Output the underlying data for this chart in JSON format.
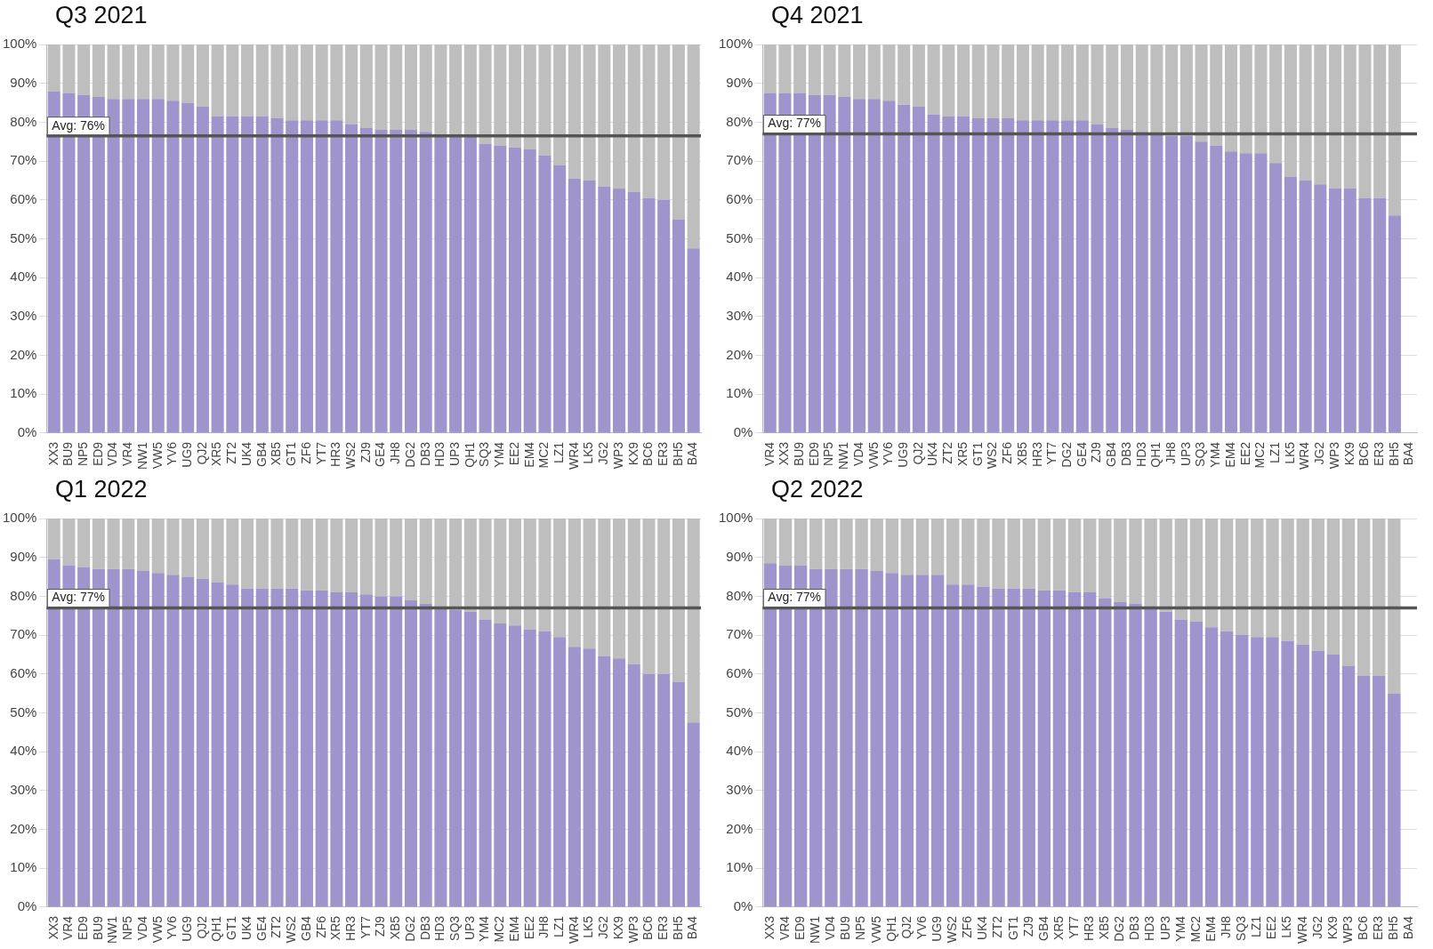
{
  "chart_data": [
    {
      "type": "bar",
      "title": "Q3 2021",
      "stacked": true,
      "grid": "y",
      "ylim": [
        0,
        100
      ],
      "yticks": [
        {
          "value": 0,
          "label": "0%"
        },
        {
          "value": 10,
          "label": "10%"
        },
        {
          "value": 20,
          "label": "20%"
        },
        {
          "value": 30,
          "label": "30%"
        },
        {
          "value": 40,
          "label": "40%"
        },
        {
          "value": 50,
          "label": "50%"
        },
        {
          "value": 60,
          "label": "60%"
        },
        {
          "value": 70,
          "label": "70%"
        },
        {
          "value": 80,
          "label": "80%"
        },
        {
          "value": 90,
          "label": "90%"
        },
        {
          "value": 100,
          "label": "100%"
        }
      ],
      "categories": [
        "XX3",
        "BU9",
        "NP5",
        "ED9",
        "VD4",
        "VR4",
        "NW1",
        "VW5",
        "YV6",
        "UG9",
        "QJ2",
        "XR5",
        "ZT2",
        "UK4",
        "GB4",
        "XB5",
        "GT1",
        "ZF6",
        "YT7",
        "HR3",
        "WS2",
        "ZJ9",
        "GE4",
        "JH8",
        "DG2",
        "DB3",
        "HD3",
        "UP3",
        "QH1",
        "SQ3",
        "YM4",
        "EE2",
        "EM4",
        "MC2",
        "LZ1",
        "WR4",
        "LK5",
        "JG2",
        "WP3",
        "KX9",
        "BC6",
        "ER3",
        "BH5",
        "BA4"
      ],
      "series": [
        {
          "color": "#9f94cb",
          "values": [
            88,
            87.5,
            87,
            86.5,
            86,
            86,
            86,
            86,
            85.5,
            85,
            84,
            81.5,
            81.5,
            81.5,
            81.5,
            81,
            80.5,
            80.5,
            80.5,
            80.5,
            79.5,
            78.5,
            78,
            78,
            78,
            77.5,
            76.5,
            76.5,
            76.5,
            74.5,
            74,
            73.5,
            73,
            71.5,
            69,
            65.5,
            65,
            63.5,
            63,
            62,
            60.5,
            60,
            55,
            47.5
          ]
        },
        {
          "color": "#bebebe",
          "values": [
            12,
            12.5,
            13,
            13.5,
            14,
            14,
            14,
            14,
            14.5,
            15,
            16,
            18.5,
            18.5,
            18.5,
            18.5,
            19,
            19.5,
            19.5,
            19.5,
            19.5,
            20.5,
            21.5,
            22,
            22,
            22,
            22.5,
            23.5,
            23.5,
            23.5,
            25.5,
            26,
            26.5,
            27,
            28.5,
            31,
            34.5,
            35,
            36.5,
            37,
            38,
            39.5,
            40,
            45,
            52.5
          ]
        }
      ],
      "ref_lines": [
        {
          "axis": "y",
          "value": 76.5,
          "label": "Avg: 76%",
          "color": "#555555"
        }
      ]
    },
    {
      "type": "bar",
      "title": "Q4 2021",
      "stacked": true,
      "grid": "y",
      "ylim": [
        0,
        100
      ],
      "yticks": [
        {
          "value": 0,
          "label": "0%"
        },
        {
          "value": 10,
          "label": "10%"
        },
        {
          "value": 20,
          "label": "20%"
        },
        {
          "value": 30,
          "label": "30%"
        },
        {
          "value": 40,
          "label": "40%"
        },
        {
          "value": 50,
          "label": "50%"
        },
        {
          "value": 60,
          "label": "60%"
        },
        {
          "value": 70,
          "label": "70%"
        },
        {
          "value": 80,
          "label": "80%"
        },
        {
          "value": 90,
          "label": "90%"
        },
        {
          "value": 100,
          "label": "100%"
        }
      ],
      "categories": [
        "VR4",
        "XX3",
        "BU9",
        "ED9",
        "NP5",
        "NW1",
        "VD4",
        "VW5",
        "YV6",
        "UG9",
        "QJ2",
        "UK4",
        "ZT2",
        "XR5",
        "GT1",
        "WS2",
        "ZF6",
        "XB5",
        "HR3",
        "YT7",
        "DG2",
        "GE4",
        "ZJ9",
        "GB4",
        "DB3",
        "HD3",
        "QH1",
        "JH8",
        "UP3",
        "SQ3",
        "YM4",
        "EM4",
        "EE2",
        "MC2",
        "LZ1",
        "LK5",
        "WR4",
        "JG2",
        "WP3",
        "KX9",
        "BC6",
        "ER3",
        "BH5",
        "BA4"
      ],
      "series": [
        {
          "color": "#9f94cb",
          "values": [
            87.5,
            87.5,
            87.5,
            87,
            87,
            86.5,
            86,
            86,
            85.5,
            84.5,
            84,
            82,
            81.5,
            81.5,
            81,
            81,
            81,
            80.5,
            80.5,
            80.5,
            80.5,
            80.5,
            79.5,
            78.5,
            78,
            77.5,
            77,
            76.5,
            76.5,
            75,
            74,
            72.5,
            72,
            72,
            69.5,
            66,
            65,
            64,
            63,
            63,
            60.5,
            60.5,
            56,
            null
          ]
        },
        {
          "color": "#bebebe",
          "values": [
            12.5,
            12.5,
            12.5,
            13,
            13,
            13.5,
            14,
            14,
            14.5,
            15.5,
            16,
            18,
            18.5,
            18.5,
            19,
            19,
            19,
            19.5,
            19.5,
            19.5,
            19.5,
            19.5,
            20.5,
            21.5,
            22,
            22.5,
            23,
            23.5,
            23.5,
            25,
            26,
            27.5,
            28,
            28,
            30.5,
            34,
            35,
            36,
            37,
            37,
            39.5,
            39.5,
            44,
            null
          ]
        }
      ],
      "ref_lines": [
        {
          "axis": "y",
          "value": 77,
          "label": "Avg: 77%",
          "color": "#555555"
        }
      ]
    },
    {
      "type": "bar",
      "title": "Q1 2022",
      "stacked": true,
      "grid": "y",
      "ylim": [
        0,
        100
      ],
      "yticks": [
        {
          "value": 0,
          "label": "0%"
        },
        {
          "value": 10,
          "label": "10%"
        },
        {
          "value": 20,
          "label": "20%"
        },
        {
          "value": 30,
          "label": "30%"
        },
        {
          "value": 40,
          "label": "40%"
        },
        {
          "value": 50,
          "label": "50%"
        },
        {
          "value": 60,
          "label": "60%"
        },
        {
          "value": 70,
          "label": "70%"
        },
        {
          "value": 80,
          "label": "80%"
        },
        {
          "value": 90,
          "label": "90%"
        },
        {
          "value": 100,
          "label": "100%"
        }
      ],
      "categories": [
        "XX3",
        "VR4",
        "ED9",
        "BU9",
        "NW1",
        "NP5",
        "VD4",
        "VW5",
        "YV6",
        "UG9",
        "QJ2",
        "QH1",
        "GT1",
        "UK4",
        "GE4",
        "ZT2",
        "WS2",
        "GB4",
        "ZF6",
        "XR5",
        "HR3",
        "YT7",
        "ZJ9",
        "XB5",
        "DG2",
        "DB3",
        "HD3",
        "SQ3",
        "UP3",
        "YM4",
        "MC2",
        "EM4",
        "EE2",
        "JH8",
        "LZ1",
        "WR4",
        "LK5",
        "JG2",
        "KX9",
        "WP3",
        "BC6",
        "ER3",
        "BH5",
        "BA4"
      ],
      "series": [
        {
          "color": "#9f94cb",
          "values": [
            89.5,
            88,
            87.5,
            87,
            87,
            87,
            86.5,
            86,
            85.5,
            85,
            84.5,
            83.5,
            83,
            82,
            82,
            82,
            82,
            81.5,
            81.5,
            81,
            81,
            80.5,
            80,
            80,
            79,
            78,
            77,
            76.5,
            76,
            74,
            73,
            72.5,
            71.5,
            71,
            69.5,
            67,
            66.5,
            64.5,
            64,
            62.5,
            60,
            60,
            58,
            47.5
          ]
        },
        {
          "color": "#bebebe",
          "values": [
            10.5,
            12,
            12.5,
            13,
            13,
            13,
            13.5,
            14,
            14.5,
            15,
            15.5,
            16.5,
            17,
            18,
            18,
            18,
            18,
            18.5,
            18.5,
            19,
            19,
            19.5,
            20,
            20,
            21,
            22,
            23,
            23.5,
            24,
            26,
            27,
            27.5,
            28.5,
            29,
            30.5,
            33,
            33.5,
            35.5,
            36,
            37.5,
            40,
            40,
            42,
            52.5
          ]
        }
      ],
      "ref_lines": [
        {
          "axis": "y",
          "value": 77,
          "label": "Avg: 77%",
          "color": "#555555"
        }
      ]
    },
    {
      "type": "bar",
      "title": "Q2 2022",
      "stacked": true,
      "grid": "y",
      "ylim": [
        0,
        100
      ],
      "yticks": [
        {
          "value": 0,
          "label": "0%"
        },
        {
          "value": 10,
          "label": "10%"
        },
        {
          "value": 20,
          "label": "20%"
        },
        {
          "value": 30,
          "label": "30%"
        },
        {
          "value": 40,
          "label": "40%"
        },
        {
          "value": 50,
          "label": "50%"
        },
        {
          "value": 60,
          "label": "60%"
        },
        {
          "value": 70,
          "label": "70%"
        },
        {
          "value": 80,
          "label": "80%"
        },
        {
          "value": 90,
          "label": "90%"
        },
        {
          "value": 100,
          "label": "100%"
        }
      ],
      "categories": [
        "XX3",
        "VR4",
        "ED9",
        "NW1",
        "VD4",
        "BU9",
        "NP5",
        "VW5",
        "QH1",
        "QJ2",
        "YV6",
        "UG9",
        "WS2",
        "ZF6",
        "UK4",
        "ZT2",
        "GT1",
        "ZJ9",
        "GB4",
        "XR5",
        "YT7",
        "HR3",
        "XB5",
        "DG2",
        "DB3",
        "HD3",
        "UP3",
        "YM4",
        "MC2",
        "EM4",
        "JH8",
        "SQ3",
        "LZ1",
        "EE2",
        "LK5",
        "WR4",
        "JG2",
        "KX9",
        "WP3",
        "BC6",
        "ER3",
        "BH5",
        "BA4"
      ],
      "series": [
        {
          "color": "#9f94cb",
          "values": [
            88.5,
            88,
            88,
            87,
            87,
            87,
            87,
            86.5,
            86,
            85.5,
            85.5,
            85.5,
            83,
            83,
            82.5,
            82,
            82,
            82,
            81.5,
            81.5,
            81,
            81,
            79.5,
            78.5,
            78,
            77,
            76,
            74,
            73.5,
            72,
            71,
            70,
            69.5,
            69.5,
            68.5,
            67.5,
            66,
            65,
            62,
            59.5,
            59.5,
            55,
            null
          ]
        },
        {
          "color": "#bebebe",
          "values": [
            11.5,
            12,
            12,
            13,
            13,
            13,
            13,
            13.5,
            14,
            14.5,
            14.5,
            14.5,
            17,
            17,
            17.5,
            18,
            18,
            18,
            18.5,
            18.5,
            19,
            19,
            20.5,
            21.5,
            22,
            23,
            24,
            26,
            26.5,
            28,
            29,
            30,
            30.5,
            30.5,
            31.5,
            32.5,
            34,
            35,
            38,
            40.5,
            40.5,
            45,
            null
          ]
        }
      ],
      "ref_lines": [
        {
          "axis": "y",
          "value": 77,
          "label": "Avg: 77%",
          "color": "#555555"
        }
      ]
    }
  ]
}
